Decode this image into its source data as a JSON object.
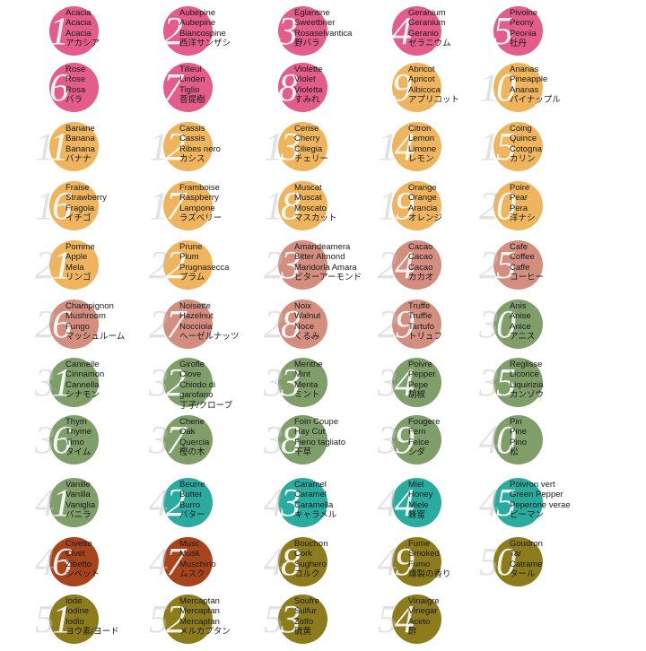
{
  "colors": {
    "pink": "#e45c8a",
    "orange": "#efb45e",
    "rose_brown": "#d48e80",
    "green": "#7f9e6a",
    "teal": "#2aaba0",
    "rust": "#a8441c",
    "olive": "#8c7c1c"
  },
  "items": [
    {
      "n": "1",
      "c": "pink",
      "l": [
        "Acacia",
        "Acacia",
        "Acacia",
        "アカシア"
      ]
    },
    {
      "n": "2",
      "c": "pink",
      "l": [
        "Aubepine",
        "Aubepine",
        "Biancospine",
        "西洋サンザシ"
      ]
    },
    {
      "n": "3",
      "c": "pink",
      "l": [
        "Eglantine",
        "Sweetbrier",
        "Rosaselvantica",
        "野バラ"
      ]
    },
    {
      "n": "4",
      "c": "pink",
      "l": [
        "Geranium",
        "Geranium",
        "Geranio",
        "ゼラニウム"
      ]
    },
    {
      "n": "5",
      "c": "pink",
      "l": [
        "Pivoine",
        "Peony",
        "Peonia",
        "牡丹"
      ]
    },
    {
      "n": "6",
      "c": "pink",
      "l": [
        "Rose",
        "Rose",
        "Rosa",
        "バラ"
      ]
    },
    {
      "n": "7",
      "c": "pink",
      "l": [
        "Tilleul",
        "Linden",
        "Tiglio",
        "菩提樹"
      ]
    },
    {
      "n": "8",
      "c": "pink",
      "l": [
        "Violette",
        "Violet",
        "Violetta",
        "すみれ"
      ]
    },
    {
      "n": "9",
      "c": "orange",
      "l": [
        "Abricot",
        "Apricot",
        "Albicoca",
        "アプリコット"
      ]
    },
    {
      "n": "10",
      "c": "orange",
      "l": [
        "Ananas",
        "Pineapple",
        "Ananas",
        "パイナップル"
      ]
    },
    {
      "n": "11",
      "c": "orange",
      "l": [
        "Banane",
        "Banana",
        "Banana",
        "バナナ"
      ]
    },
    {
      "n": "12",
      "c": "orange",
      "l": [
        "Cassis",
        "Cassis",
        "Ribes nero",
        "カシス"
      ]
    },
    {
      "n": "13",
      "c": "orange",
      "l": [
        "Cerise",
        "Cherry",
        "Ciliegia",
        "チェリー"
      ]
    },
    {
      "n": "14",
      "c": "orange",
      "l": [
        "Citron",
        "Lemon",
        "Limone",
        "レモン"
      ]
    },
    {
      "n": "15",
      "c": "orange",
      "l": [
        "Coing",
        "Quince",
        "Cotogna",
        "カリン"
      ]
    },
    {
      "n": "16",
      "c": "orange",
      "l": [
        "Fraise",
        "Strawberry",
        "Fragola",
        "イチゴ"
      ]
    },
    {
      "n": "17",
      "c": "orange",
      "l": [
        "Framboise",
        "Raspberry",
        "Lampone",
        "ラズベリー"
      ]
    },
    {
      "n": "18",
      "c": "orange",
      "l": [
        "Muscat",
        "Muscat",
        "Moscato",
        "マスカット"
      ]
    },
    {
      "n": "19",
      "c": "orange",
      "l": [
        "Orange",
        "Orange",
        "Arancia",
        "オレンジ"
      ]
    },
    {
      "n": "20",
      "c": "orange",
      "l": [
        "Poire",
        "Pear",
        "Pera",
        "洋ナシ"
      ]
    },
    {
      "n": "21",
      "c": "orange",
      "l": [
        "Pomme",
        "Apple",
        "Mela",
        "リンゴ"
      ]
    },
    {
      "n": "22",
      "c": "orange",
      "l": [
        "Prune",
        "Plum",
        "Prugnasecca",
        "プラム"
      ]
    },
    {
      "n": "23",
      "c": "rose_brown",
      "l": [
        "Amandeamera",
        "Bitter Almond",
        "Mandorla Amara",
        "ビターアーモンド"
      ]
    },
    {
      "n": "24",
      "c": "rose_brown",
      "l": [
        "Cacao",
        "Cacao",
        "Cacao",
        "カカオ"
      ]
    },
    {
      "n": "25",
      "c": "rose_brown",
      "l": [
        "Cafe",
        "Coffee",
        "Caffe",
        "コーヒー"
      ]
    },
    {
      "n": "26",
      "c": "rose_brown",
      "l": [
        "Champignon",
        "Mushroom",
        "Fungo",
        "マッシュルーム"
      ]
    },
    {
      "n": "27",
      "c": "rose_brown",
      "l": [
        "Noisette",
        "Hazelnut",
        "Nocciola",
        "ヘーゼルナッツ"
      ]
    },
    {
      "n": "28",
      "c": "rose_brown",
      "l": [
        "Noix",
        "Walnut",
        "Noce",
        "くるみ"
      ]
    },
    {
      "n": "29",
      "c": "rose_brown",
      "l": [
        "Truffe",
        "Truffle",
        "Tartufo",
        "トリュフ"
      ]
    },
    {
      "n": "30",
      "c": "green",
      "l": [
        "Anis",
        "Anise",
        "Anice",
        "アニス"
      ]
    },
    {
      "n": "31",
      "c": "green",
      "l": [
        "Cannelle",
        "Cinnamon",
        "Cannella",
        "シナモン"
      ]
    },
    {
      "n": "32",
      "c": "green",
      "l": [
        "Girofle",
        "Clove",
        "Chiodo di",
        "garofano",
        "丁子/クローブ"
      ]
    },
    {
      "n": "33",
      "c": "green",
      "l": [
        "Menthe",
        "Mint",
        "Menta",
        "ミント"
      ]
    },
    {
      "n": "34",
      "c": "green",
      "l": [
        "Poivre",
        "Pepper",
        "Pepe",
        "胡椒"
      ]
    },
    {
      "n": "35",
      "c": "green",
      "l": [
        "Reglisse",
        "Licorice",
        "Liquirizia",
        "カンゾウ"
      ]
    },
    {
      "n": "36",
      "c": "green",
      "l": [
        "Thym",
        "Thyme",
        "Timo",
        "タイム"
      ]
    },
    {
      "n": "37",
      "c": "green",
      "l": [
        "Chene",
        "Oak",
        "Quercia",
        "樫の木"
      ]
    },
    {
      "n": "38",
      "c": "green",
      "l": [
        "Foin Coupe",
        "Hay Cut",
        "Fieno tagliato",
        "干草"
      ]
    },
    {
      "n": "39",
      "c": "green",
      "l": [
        "Fougere",
        "Fern",
        "Felce",
        "シダ"
      ]
    },
    {
      "n": "40",
      "c": "green",
      "l": [
        "Pin",
        "Pine",
        "Pino",
        "松"
      ]
    },
    {
      "n": "41",
      "c": "green",
      "l": [
        "Vanille",
        "Vanilla",
        "Vaniglia",
        "バニラ"
      ]
    },
    {
      "n": "42",
      "c": "teal",
      "l": [
        "Beurre",
        "Butter",
        "Burro",
        "バター"
      ]
    },
    {
      "n": "43",
      "c": "teal",
      "l": [
        "Caramel",
        "Caramel",
        "Caramella",
        "キャラメル"
      ]
    },
    {
      "n": "44",
      "c": "teal",
      "l": [
        "Miel",
        "Honey",
        "Miele",
        "蜂蜜"
      ]
    },
    {
      "n": "45",
      "c": "teal",
      "l": [
        "Poivron vert",
        "Green Pepper",
        "Peperone verae",
        "ピーマン"
      ]
    },
    {
      "n": "46",
      "c": "rust",
      "l": [
        "Civette",
        "Civet",
        "Zibetto",
        "シベット"
      ]
    },
    {
      "n": "47",
      "c": "rust",
      "l": [
        "Musc",
        "Musk",
        "Muschino",
        "ムスク"
      ]
    },
    {
      "n": "48",
      "c": "olive",
      "l": [
        "Bouchon",
        "Cork",
        "Sughero",
        "コルク"
      ]
    },
    {
      "n": "49",
      "c": "olive",
      "l": [
        "Fume",
        "Smoked",
        "Fumo",
        "燻製の香り"
      ]
    },
    {
      "n": "50",
      "c": "olive",
      "l": [
        "Goudron",
        "Tar",
        "Catrame",
        "タール"
      ]
    },
    {
      "n": "51",
      "c": "olive",
      "l": [
        "Iode",
        "Iodine",
        "Iodio",
        "ヨウ素/ヨード"
      ]
    },
    {
      "n": "52",
      "c": "olive",
      "l": [
        "Mercaptan",
        "Mercaptan",
        "Mercaptan",
        "メルカプタン"
      ]
    },
    {
      "n": "53",
      "c": "olive",
      "l": [
        "Soufre",
        "Sulfur",
        "Zolfo",
        "硫黄"
      ]
    },
    {
      "n": "54",
      "c": "olive",
      "l": [
        "Vinaigre",
        "Vinegar",
        "Aceto",
        "酢"
      ]
    }
  ]
}
